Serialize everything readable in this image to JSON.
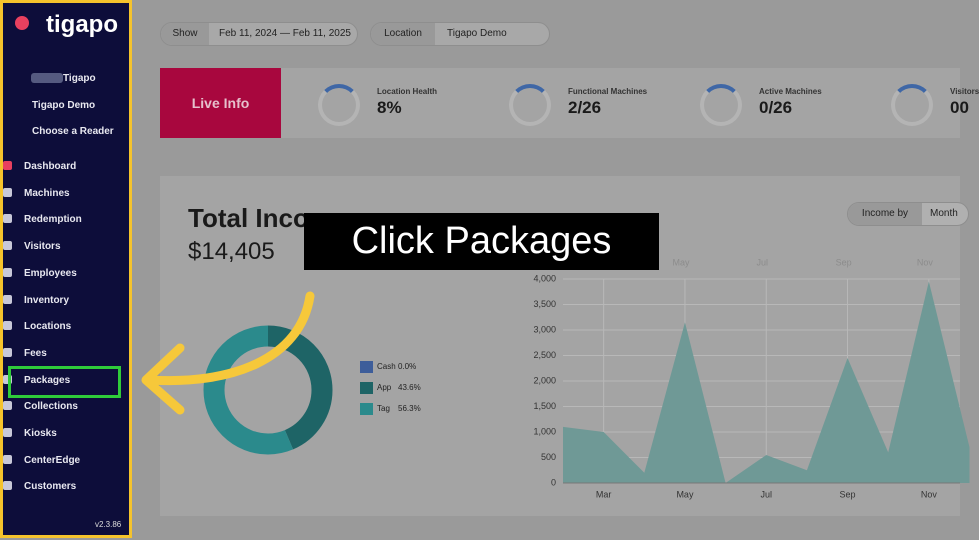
{
  "sidebar": {
    "brand": "tigapo",
    "user": "Tigapo",
    "location": "Tigapo Demo",
    "reader": "Choose a Reader",
    "menu": [
      "Dashboard",
      "Machines",
      "Redemption",
      "Visitors",
      "Employees",
      "Inventory",
      "Locations",
      "Fees",
      "Packages",
      "Collections",
      "Kiosks",
      "CenterEdge",
      "Customers"
    ],
    "version": "v2.3.86"
  },
  "topbar": {
    "show_label": "Show",
    "date_range": "Feb 11, 2024 — Feb 11, 2025",
    "location_label": "Location",
    "location": "Tigapo Demo"
  },
  "live_info": {
    "title": "Live Info",
    "stats": [
      {
        "label": "Location Health",
        "value": "8%"
      },
      {
        "label": "Functional Machines",
        "value": "2/26"
      },
      {
        "label": "Active Machines",
        "value": "0/26"
      },
      {
        "label": "Visitors",
        "value": "00"
      }
    ]
  },
  "income": {
    "title": "Total Income",
    "total": "$14,405",
    "toggle": [
      "Income by",
      "Month"
    ],
    "donut": [
      {
        "name": "Cash",
        "value": 0.0,
        "value_label": "0.0%",
        "color": "#3d5d9a"
      },
      {
        "name": "App",
        "value": 43.6,
        "value_label": "43.6%",
        "color": "#1e6466"
      },
      {
        "name": "Tag",
        "value": 56.3,
        "value_label": "56.3%",
        "color": "#2b8a8c"
      }
    ],
    "mini_labels": [
      "May",
      "Jul",
      "Sep",
      "Nov"
    ],
    "chart_data": {
      "type": "area",
      "categories": [
        null,
        "Mar",
        null,
        "May",
        null,
        "Jul",
        null,
        "Sep",
        null,
        "Nov",
        null
      ],
      "values": [
        1100,
        1000,
        200,
        3150,
        0,
        550,
        250,
        2450,
        600,
        3950,
        700
      ],
      "color": "#6f9996",
      "ylim": [
        0,
        4000
      ],
      "yticks": [
        0,
        {
          "value": 500,
          "label": "500"
        },
        {
          "value": 1000,
          "label": "1,000"
        },
        {
          "value": 1500,
          "label": "1,500"
        },
        {
          "value": 2000,
          "label": "2,000"
        },
        {
          "value": 2500,
          "label": "2,500"
        },
        {
          "value": 3000,
          "label": "3,000"
        },
        {
          "value": 3500,
          "label": "3,500"
        },
        {
          "value": 4000,
          "label": "4,000"
        }
      ],
      "grid": true
    }
  },
  "overlay": {
    "callout": "Click Packages"
  }
}
